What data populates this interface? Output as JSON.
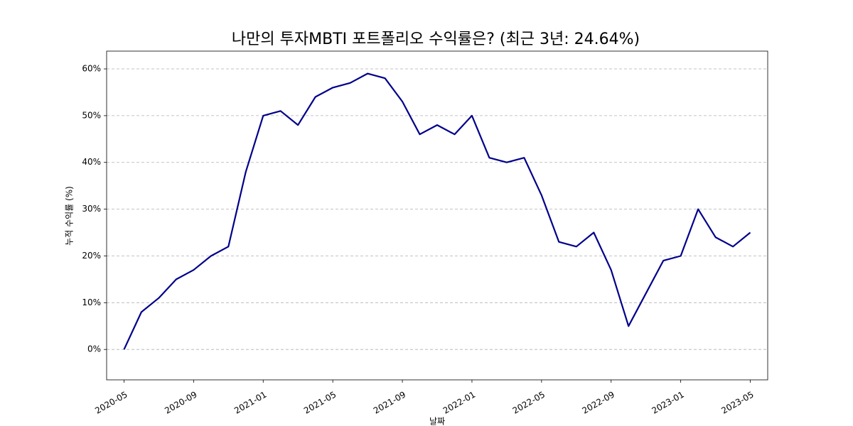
{
  "chart_data": {
    "type": "line",
    "title": "나만의 투자MBTI 포트폴리오 수익률은?  (최근 3년: 24.64%)",
    "x_label": "날짜",
    "y_label": "누적 수익률 (%)",
    "x": [
      "2020-05",
      "2020-06",
      "2020-07",
      "2020-08",
      "2020-09",
      "2020-10",
      "2020-11",
      "2020-12",
      "2021-01",
      "2021-02",
      "2021-03",
      "2021-04",
      "2021-05",
      "2021-06",
      "2021-07",
      "2021-08",
      "2021-09",
      "2021-10",
      "2021-11",
      "2021-12",
      "2022-01",
      "2022-02",
      "2022-03",
      "2022-04",
      "2022-05",
      "2022-06",
      "2022-07",
      "2022-08",
      "2022-09",
      "2022-10",
      "2022-11",
      "2022-12",
      "2023-01",
      "2023-02",
      "2023-03",
      "2023-04",
      "2023-05"
    ],
    "series": [
      {
        "color": "#00008b",
        "values": [
          0,
          8,
          11,
          15,
          17,
          20,
          22,
          38,
          50,
          51,
          48,
          54,
          56,
          57,
          59,
          58,
          53,
          46,
          48,
          46,
          50,
          41,
          40,
          41,
          33,
          23,
          22,
          25,
          17,
          5,
          12,
          19,
          20,
          30,
          24,
          22,
          25
        ]
      }
    ],
    "xlim": [
      "2020-04",
      "2023-06"
    ],
    "xticks": [
      "2020-05",
      "2020-09",
      "2021-01",
      "2021-05",
      "2021-09",
      "2022-01",
      "2022-05",
      "2022-09",
      "2023-01",
      "2023-05"
    ],
    "ylim": [
      -6.5,
      63.8
    ],
    "yticks": [
      {
        "value": 0,
        "label": "0%"
      },
      {
        "value": 10,
        "label": "10%"
      },
      {
        "value": 20,
        "label": "20%"
      },
      {
        "value": 30,
        "label": "30%"
      },
      {
        "value": 40,
        "label": "40%"
      },
      {
        "value": 50,
        "label": "50%"
      },
      {
        "value": 60,
        "label": "60%"
      }
    ],
    "grid": "y"
  }
}
